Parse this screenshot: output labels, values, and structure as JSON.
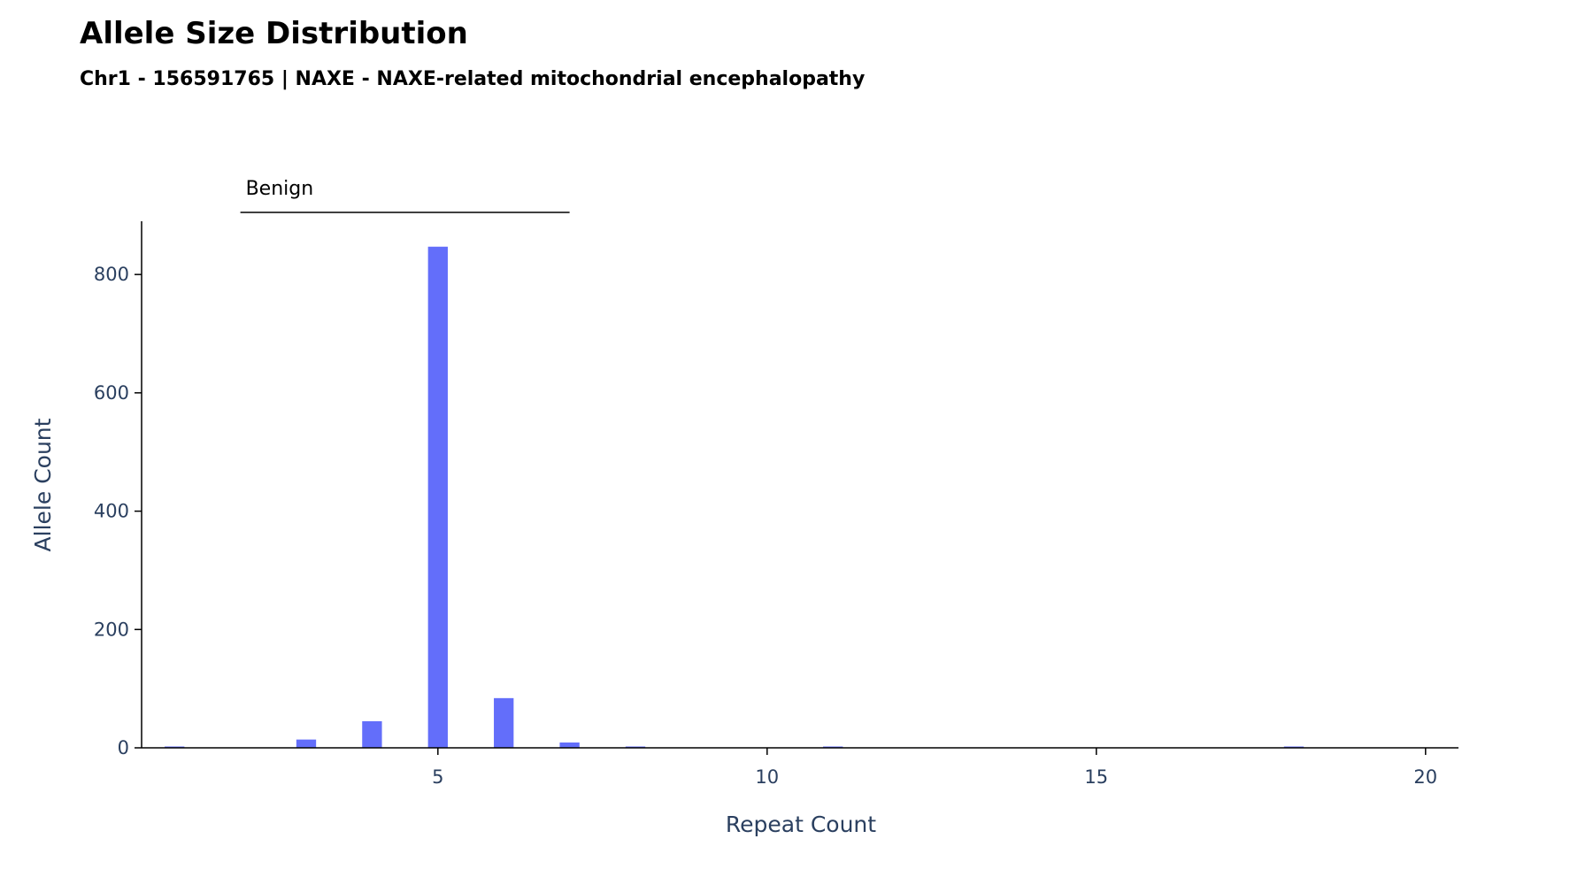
{
  "chart_data": {
    "type": "bar",
    "title": "Allele Size Distribution",
    "subtitle": "Chr1 - 156591765 | NAXE - NAXE-related mitochondrial encephalopathy",
    "xlabel": "Repeat Count",
    "ylabel": "Allele Count",
    "x": [
      1,
      3,
      4,
      5,
      6,
      7,
      8,
      11,
      18
    ],
    "values": [
      2,
      14,
      45,
      847,
      84,
      9,
      1,
      1,
      1
    ],
    "xlim": [
      0.5,
      20.5
    ],
    "ylim": [
      0,
      890
    ],
    "x_ticks": [
      "5",
      "10",
      "15",
      "20"
    ],
    "x_tick_values": [
      5,
      10,
      15,
      20
    ],
    "y_ticks": [
      "0",
      "200",
      "400",
      "600",
      "800"
    ],
    "y_tick_values": [
      0,
      200,
      400,
      600,
      800
    ],
    "grid": false,
    "bar_color": "#636efa",
    "annotations": [
      {
        "label": "Benign",
        "x_start": 2,
        "x_end": 7
      }
    ]
  }
}
